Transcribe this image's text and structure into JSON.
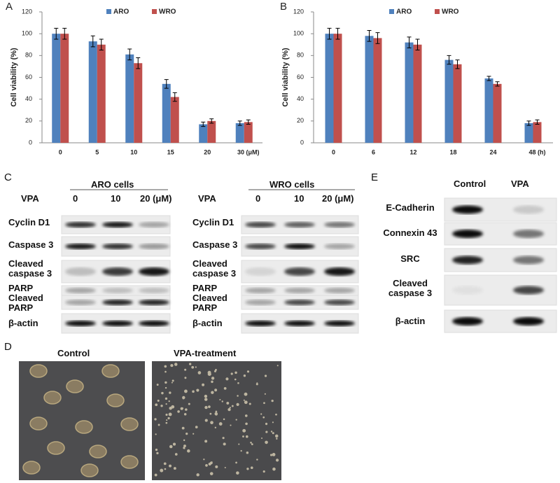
{
  "chart_data": [
    {
      "type": "bar",
      "panel_label": "A",
      "y_label": "Cell viability (%)",
      "categories": [
        "0",
        "5",
        "10",
        "15",
        "20",
        "30 (μM)"
      ],
      "series": [
        {
          "name": "ARO",
          "color": "#4f81bd",
          "values": [
            100,
            93,
            81,
            54,
            17,
            18
          ],
          "errors": [
            5,
            5,
            5,
            4,
            2,
            2
          ]
        },
        {
          "name": "WRO",
          "color": "#c0504d",
          "values": [
            100,
            90,
            73,
            42,
            20,
            19
          ],
          "errors": [
            5,
            5,
            5,
            4,
            2,
            2
          ]
        }
      ],
      "ylim": [
        0,
        120
      ],
      "yticks": [
        0,
        20,
        40,
        60,
        80,
        100,
        120
      ],
      "grid": false,
      "legend": "top"
    },
    {
      "type": "bar",
      "panel_label": "B",
      "y_label": "Cell viability (%)",
      "categories": [
        "0",
        "6",
        "12",
        "18",
        "24",
        "48 (h)"
      ],
      "series": [
        {
          "name": "ARO",
          "color": "#4f81bd",
          "values": [
            100,
            98,
            92,
            76,
            59,
            18
          ],
          "errors": [
            5,
            5,
            5,
            4,
            2,
            2
          ]
        },
        {
          "name": "WRO",
          "color": "#c0504d",
          "values": [
            100,
            96,
            90,
            72,
            54,
            19
          ],
          "errors": [
            5,
            5,
            5,
            4,
            2,
            2
          ]
        }
      ],
      "ylim": [
        0,
        120
      ],
      "yticks": [
        0,
        20,
        40,
        60,
        80,
        100,
        120
      ],
      "grid": false,
      "legend": "top"
    }
  ],
  "panel_c": {
    "label": "C",
    "groups": [
      {
        "treatment_label": "VPA",
        "cell_line": "ARO cells",
        "doses": [
          "0",
          "10",
          "20 (μM)"
        ],
        "proteins": [
          "Cyclin D1",
          "Caspase 3",
          "Cleaved\ncaspase 3",
          "PARP",
          "Cleaved\nPARP",
          "β-actin"
        ]
      },
      {
        "treatment_label": "VPA",
        "cell_line": "WRO cells",
        "doses": [
          "0",
          "10",
          "20 (μM)"
        ],
        "proteins": [
          "Cyclin D1",
          "Caspase 3",
          "Cleaved\ncaspase 3",
          "PARP",
          "Cleaved\nPARP",
          "β-actin"
        ]
      }
    ]
  },
  "panel_d": {
    "label": "D",
    "images": [
      "Control",
      "VPA-treatment"
    ]
  },
  "panel_e": {
    "label": "E",
    "conditions": [
      "Control",
      "VPA"
    ],
    "proteins": [
      "E-Cadherin",
      "Connexin 43",
      "SRC",
      "Cleaved\ncaspase 3",
      "β-actin"
    ]
  }
}
